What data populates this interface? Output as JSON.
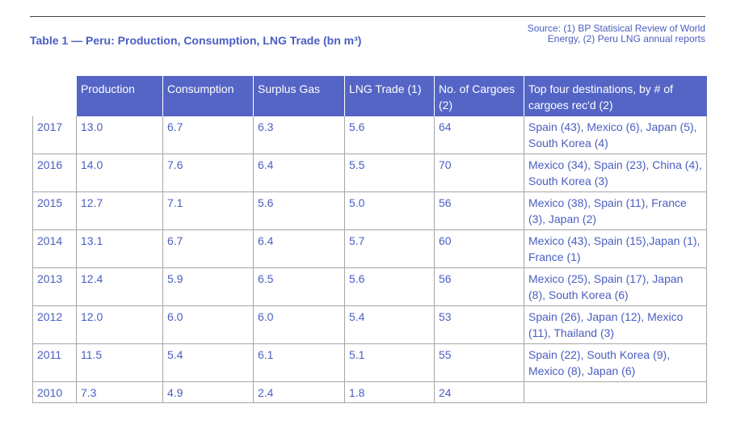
{
  "title": "Table 1 — Peru: Production, Consumption, LNG Trade (bn m³)",
  "source": "Source: (1) BP Statisical Review of World Energy, (2) Peru LNG annual reports",
  "table": {
    "headers": [
      "",
      "Production",
      "Consumption",
      "Surplus Gas",
      "LNG Trade (1)",
      "No. of Cargoes (2)",
      "Top four destinations, by # of cargoes rec'd (2)"
    ],
    "rows": [
      [
        "2017",
        "13.0",
        "6.7",
        "6.3",
        "5.6",
        "64",
        "Spain (43), Mexico (6), Japan (5), South Korea (4)"
      ],
      [
        "2016",
        "14.0",
        "7.6",
        "6.4",
        "5.5",
        "70",
        "Mexico (34), Spain (23), China (4), South Korea (3)"
      ],
      [
        "2015",
        "12.7",
        "7.1",
        "5.6",
        "5.0",
        "56",
        "Mexico (38), Spain (11), France (3), Japan (2)"
      ],
      [
        "2014",
        "13.1",
        "6.7",
        "6.4",
        "5.7",
        "60",
        "Mexico (43), Spain (15),Japan (1), France (1)"
      ],
      [
        "2013",
        "12.4",
        "5.9",
        "6.5",
        "5.6",
        "56",
        "Mexico (25), Spain (17), Japan (8), South Korea (6)"
      ],
      [
        "2012",
        "12.0",
        "6.0",
        "6.0",
        "5.4",
        "53",
        "Spain (26), Japan (12), Mexico (11), Thailand (3)"
      ],
      [
        "2011",
        "11.5",
        "5.4",
        "6.1",
        "5.1",
        "55",
        "Spain (22), South Korea (9), Mexico (8), Japan (6)"
      ],
      [
        "2010",
        "7.3",
        "4.9",
        "2.4",
        "1.8",
        "24",
        ""
      ]
    ]
  },
  "colors": {
    "header_bg": "#5465c6",
    "text": "#4a5ec1",
    "grid": "#a6a6a6"
  }
}
